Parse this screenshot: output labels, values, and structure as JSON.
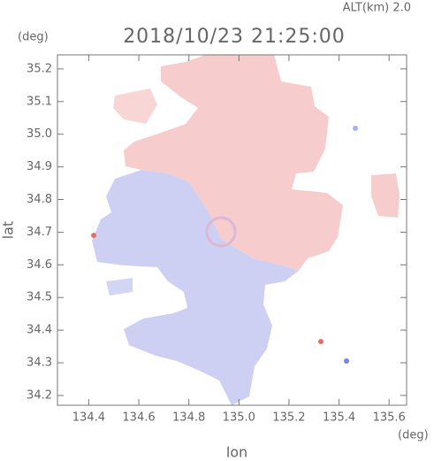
{
  "chart_data": {
    "type": "radar-map",
    "title": "2018/10/23 21:25:00",
    "subtitle": "ALT(km) 2.0",
    "xlabel": "lon",
    "ylabel": "lat",
    "xunit": "(deg)",
    "yunit": "(deg)",
    "xlim": [
      134.275,
      135.67
    ],
    "ylim": [
      34.17,
      35.243
    ],
    "xticks": [
      134.4,
      134.6,
      134.8,
      {
        "value": 135,
        "label": "135.0"
      },
      135.2,
      135.4,
      135.6
    ],
    "yticks": [
      34.2,
      34.3,
      34.4,
      34.5,
      34.6,
      34.7,
      34.8,
      34.9,
      {
        "value": 35,
        "label": "35.0"
      },
      35.1,
      35.2
    ]
  }
}
